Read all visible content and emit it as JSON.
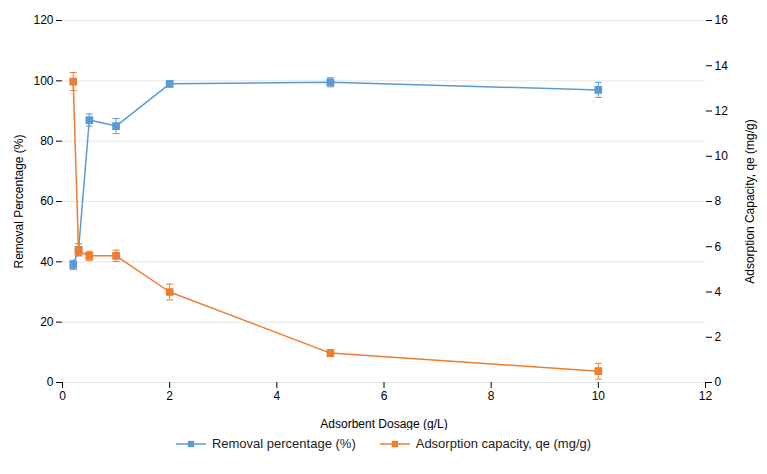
{
  "chart_data": {
    "type": "line",
    "xlabel": "Adsorbent Dosage (g/L)",
    "ylabel": "Removal Percentage (%)",
    "y2label": "Adsorption Capacity, qe (mg/g)",
    "x": [
      0.2,
      0.3,
      0.5,
      1.0,
      2.0,
      5.0,
      10.0
    ],
    "series": [
      {
        "name": "Removal percentage (%)",
        "color": "#5B9BD5",
        "marker": "square",
        "values": [
          39.0,
          44.0,
          87.0,
          85.0,
          99.0,
          99.5,
          97.0
        ],
        "errors": [
          1.5,
          2.0,
          2.0,
          2.5,
          1.0,
          1.5,
          2.5
        ]
      },
      {
        "name": "Adsorption capacity, qe (mg/g)",
        "color": "#ED7D31",
        "marker": "square",
        "axis": "y2",
        "values": [
          13.3,
          5.8,
          5.6,
          5.6,
          4.0,
          1.3,
          0.5
        ],
        "errors": [
          0.4,
          0.2,
          0.2,
          0.25,
          0.35,
          0.15,
          0.35
        ]
      }
    ],
    "xlim": [
      0,
      12
    ],
    "xticks": [
      0,
      2,
      4,
      6,
      8,
      10,
      12
    ],
    "ylim": [
      0,
      120
    ],
    "yticks": [
      0,
      20,
      40,
      60,
      80,
      100,
      120
    ],
    "y2lim": [
      0,
      16
    ],
    "y2ticks": [
      0,
      2,
      4,
      6,
      8,
      10,
      12,
      14,
      16
    ],
    "grid": true,
    "legend": "bottom"
  }
}
